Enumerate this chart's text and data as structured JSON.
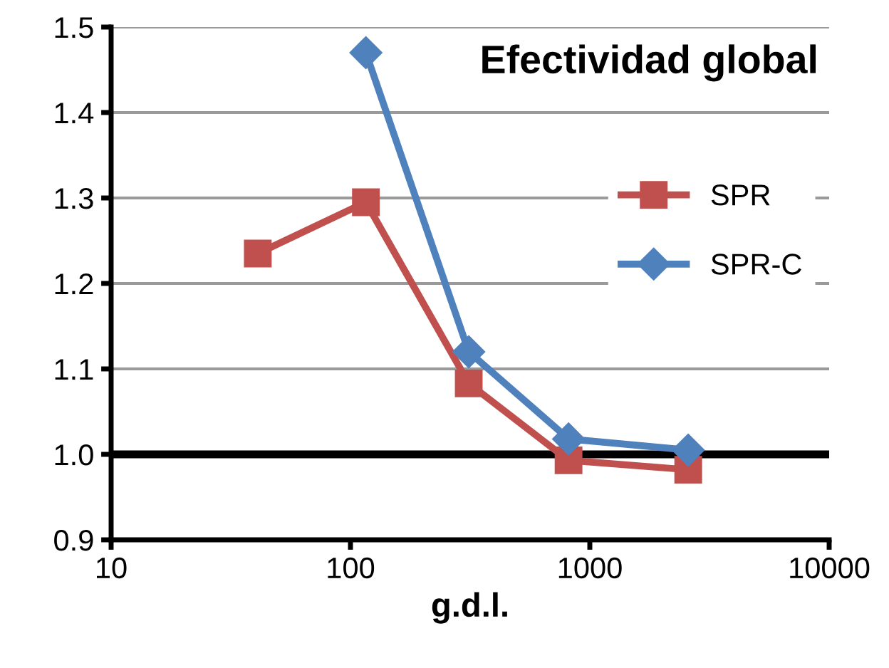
{
  "chart_data": {
    "type": "line",
    "title": "Efectividad global",
    "xlabel": "g.d.l.",
    "x": [
      41,
      116,
      312,
      815,
      2577
    ],
    "series": [
      {
        "name": "SPR",
        "color": "#c0504d",
        "marker": "square",
        "values": [
          1.235,
          1.295,
          1.083,
          0.993,
          0.982
        ]
      },
      {
        "name": "SPR-C",
        "color": "#4f81bd",
        "marker": "diamond",
        "values": [
          null,
          1.47,
          1.12,
          1.018,
          1.005
        ]
      }
    ],
    "log": "x",
    "xlim": [
      10,
      10000
    ],
    "xticks": [
      10,
      100,
      1000,
      10000
    ],
    "ylim": [
      0.9,
      1.5
    ],
    "yticks": [
      {
        "value": 0.9,
        "label": "0.9"
      },
      {
        "value": 1.0,
        "label": "1.0"
      },
      {
        "value": 1.1,
        "label": "1.1"
      },
      {
        "value": 1.2,
        "label": "1.2"
      },
      {
        "value": 1.3,
        "label": "1.3"
      },
      {
        "value": 1.4,
        "label": "1.4"
      },
      {
        "value": 1.5,
        "label": "1.5"
      }
    ],
    "ref_lines": [
      {
        "axis": "y",
        "value": 1.0,
        "label": null,
        "color": "#000000"
      }
    ],
    "grid": "y",
    "legend": "right",
    "line_style": "solid"
  }
}
